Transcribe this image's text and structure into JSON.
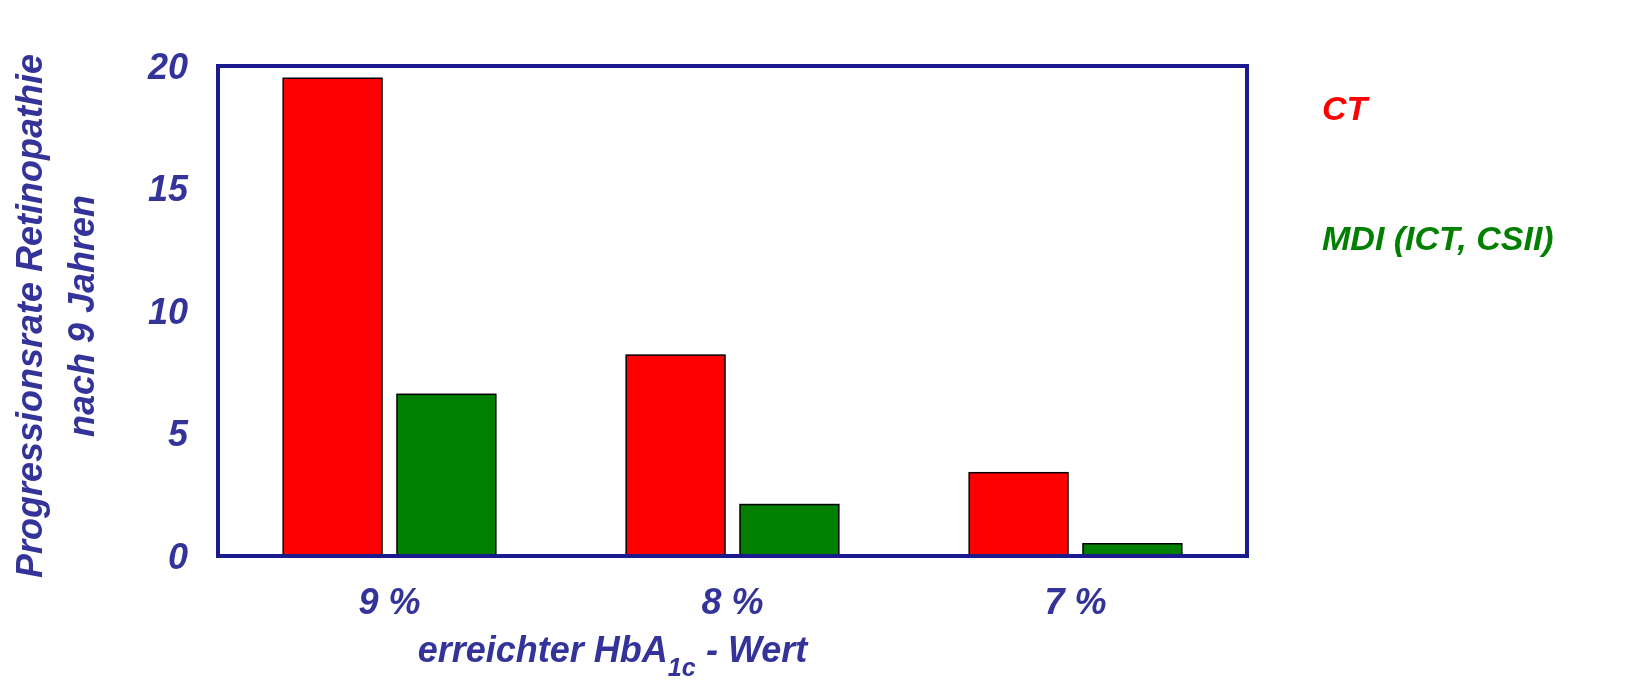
{
  "chart_data": {
    "type": "bar",
    "xlabel": "erreichter HbA$_{1c}$ - Wert",
    "ylabel": "Progressionsrate Retinopathie\nnach 9 Jahren",
    "categories": [
      "9 %",
      "8 %",
      "7 %"
    ],
    "series": [
      {
        "name": "CT",
        "color": "#ff0000",
        "values": [
          19.5,
          8.2,
          3.4
        ]
      },
      {
        "name": "MDI (ICT, CSII)",
        "color": "#007f00",
        "values": [
          6.6,
          2.1,
          0.5
        ]
      }
    ],
    "ylim": [
      0,
      20
    ],
    "yticks": [
      0,
      5,
      10,
      15,
      20
    ],
    "legend": "right"
  }
}
